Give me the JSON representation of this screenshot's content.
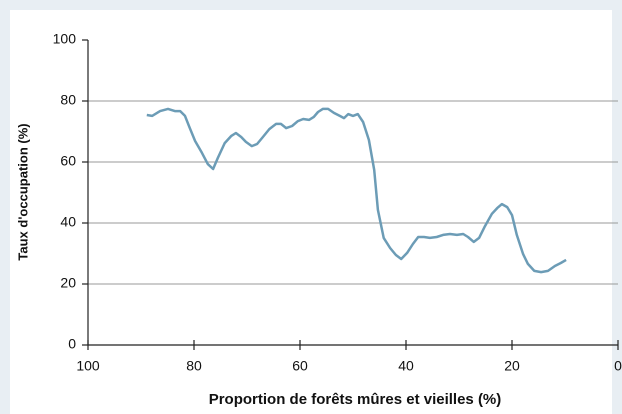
{
  "chart_data": {
    "type": "line",
    "x_label": "Proportion de forêts mûres et vieilles (%)",
    "y_label": "Taux d'occupation (%)",
    "x": [
      88.9,
      87.9,
      86.4,
      84.9,
      83.6,
      82.6,
      81.7,
      80.8,
      79.8,
      78.5,
      77.4,
      76.4,
      75.5,
      74.2,
      73,
      72.1,
      71.1,
      70.2,
      69.1,
      68.1,
      67,
      65.8,
      64.5,
      63.6,
      62.6,
      61.5,
      60.4,
      59.4,
      58.3,
      57.4,
      56.6,
      55.7,
      54.7,
      53.6,
      52.5,
      51.7,
      50.9,
      50,
      49.1,
      48.1,
      47,
      46,
      45.3,
      44.2,
      43,
      41.9,
      40.9,
      39.8,
      38.7,
      37.7,
      36.6,
      35.5,
      34.2,
      33,
      31.7,
      30.4,
      29.2,
      28.3,
      27.2,
      26.2,
      25.1,
      23.8,
      22.8,
      21.9,
      20.9,
      20,
      19.1,
      17.9,
      17,
      15.8,
      14.5,
      13.2,
      11.9,
      10.8,
      9.8
    ],
    "series": [
      {
        "name": "Taux d'occupation",
        "color": "#6c9cb6",
        "values": [
          75.4,
          75.1,
          76.7,
          77.4,
          76.7,
          76.7,
          75.1,
          71.1,
          66.9,
          63,
          59.3,
          57.7,
          61.3,
          66.2,
          68.5,
          69.5,
          68.2,
          66.6,
          65.2,
          65.9,
          68.2,
          70.8,
          72.5,
          72.5,
          71.1,
          71.8,
          73.4,
          74.1,
          73.8,
          74.8,
          76.4,
          77.4,
          77.4,
          76.1,
          75.1,
          74.4,
          75.7,
          75.1,
          75.7,
          73.1,
          67.2,
          57.4,
          44.3,
          35.1,
          31.8,
          29.5,
          28.2,
          30.2,
          33.1,
          35.4,
          35.4,
          35.1,
          35.4,
          36.1,
          36.4,
          36.1,
          36.4,
          35.4,
          33.8,
          35.1,
          39,
          43,
          44.9,
          46.2,
          45.2,
          42.6,
          36.1,
          29.8,
          26.6,
          24.3,
          23.9,
          24.3,
          25.9,
          26.9,
          27.9
        ]
      }
    ],
    "xlim": [
      100,
      0
    ],
    "xticks": [
      100,
      80,
      60,
      40,
      20,
      0
    ],
    "ylim": [
      0,
      100
    ],
    "yticks": [
      0,
      20,
      40,
      60,
      80,
      100
    ],
    "grid": true
  }
}
